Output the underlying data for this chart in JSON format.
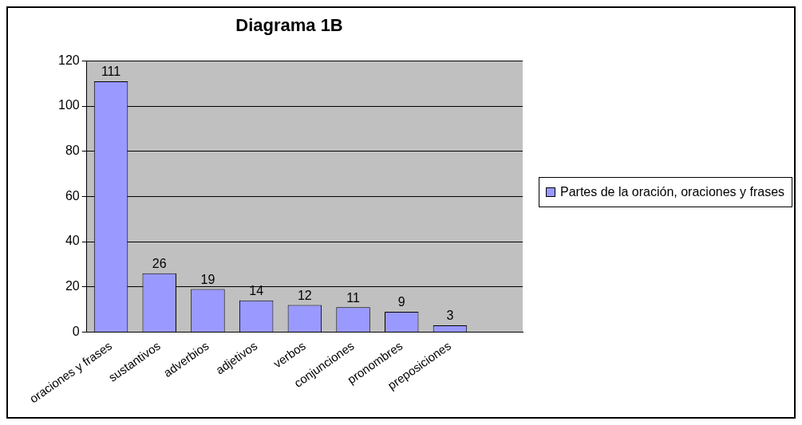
{
  "chart_data": {
    "type": "bar",
    "title": "Diagrama 1B",
    "categories": [
      "oraciones y frases",
      "sustantivos",
      "adverbios",
      "adjetivos",
      "verbos",
      "conjunciones",
      "pronombres",
      "preposiciones",
      null
    ],
    "series": [
      {
        "name": "Partes de la oración, oraciones y frases",
        "color": "#9999ff",
        "values": [
          111,
          26,
          19,
          14,
          12,
          11,
          9,
          3,
          null
        ]
      }
    ],
    "ylim": [
      0,
      120
    ],
    "yticks": [
      0,
      20,
      40,
      60,
      80,
      100,
      120
    ],
    "grid": "y",
    "legend": "right",
    "data_labels": true
  }
}
